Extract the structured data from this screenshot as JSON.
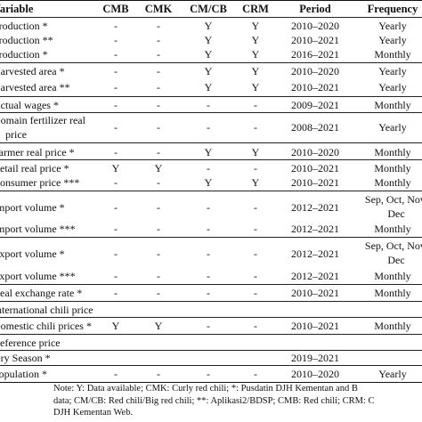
{
  "header": {
    "variable": "Variable",
    "cmb": "CMB",
    "cmk": "CMK",
    "cmcb": "CM/CB",
    "crm": "CRM",
    "period": "Period",
    "frequency": "Frequency"
  },
  "rows": [
    {
      "variable": "Production *",
      "cmb": "-",
      "cmk": "-",
      "cmcb": "Y",
      "crm": "Y",
      "period": "2010–2020",
      "frequency": "Yearly"
    },
    {
      "variable": "Production **",
      "cmb": "-",
      "cmk": "-",
      "cmcb": "Y",
      "crm": "Y",
      "period": "2010–2021",
      "frequency": "Yearly"
    },
    {
      "variable": "Production *",
      "cmb": "-",
      "cmk": "-",
      "cmcb": "Y",
      "crm": "Y",
      "period": "2016–2021",
      "frequency": "Monthly"
    },
    {
      "variable": "Harvested area *",
      "cmb": "-",
      "cmk": "-",
      "cmcb": "Y",
      "crm": "Y",
      "period": "2010–2020",
      "frequency": "Yearly"
    },
    {
      "variable": "Harvested area **",
      "cmb": "-",
      "cmk": "-",
      "cmcb": "Y",
      "crm": "Y",
      "period": "2010–2021",
      "frequency": "Yearly"
    },
    {
      "variable": "Actual wages *",
      "cmb": "-",
      "cmk": "-",
      "cmcb": "-",
      "crm": "-",
      "period": "2009–2021",
      "frequency": "Monthly"
    },
    {
      "variable_l1": "Domain fertilizer real",
      "variable_l2": "price",
      "cmb": "-",
      "cmk": "-",
      "cmcb": "-",
      "crm": "-",
      "period": "2008–2021",
      "frequency": "Yearly"
    },
    {
      "variable": "Farmer real price *",
      "cmb": "-",
      "cmk": "-",
      "cmcb": "Y",
      "crm": "Y",
      "period": "2010–2020",
      "frequency": "Monthly"
    },
    {
      "variable": "Retail real price *",
      "cmb": "Y",
      "cmk": "Y",
      "cmcb": "-",
      "crm": "-",
      "period": "2010–2021",
      "frequency": "Monthly"
    },
    {
      "variable": "Consumer price ***",
      "cmb": "-",
      "cmk": "-",
      "cmcb": "Y",
      "crm": "Y",
      "period": "2010–2021",
      "frequency": "Monthly"
    },
    {
      "variable": "Import volume *",
      "cmb": "-",
      "cmk": "-",
      "cmcb": "-",
      "crm": "-",
      "period": "2012–2021",
      "frequency_l1": "Sep, Oct, Nov,",
      "frequency_l2": "Dec"
    },
    {
      "variable": "Import volume ***",
      "cmb": "-",
      "cmk": "-",
      "cmcb": "-",
      "crm": "-",
      "period": "2012–2021",
      "frequency": "Monthly"
    },
    {
      "variable": "Export volume *",
      "cmb": "-",
      "cmk": "-",
      "cmcb": "-",
      "crm": "-",
      "period": "2012–2021",
      "frequency_l1": "Sep, Oct, Nov,",
      "frequency_l2": "Dec"
    },
    {
      "variable": "Export volume ***",
      "cmb": "-",
      "cmk": "-",
      "cmcb": "-",
      "crm": "-",
      "period": "2012–2021",
      "frequency": "Monthly"
    },
    {
      "variable": "Real exchange rate *",
      "cmb": "-",
      "cmk": "-",
      "cmcb": "-",
      "crm": "-",
      "period": "2010–2021",
      "frequency": "Monthly"
    },
    {
      "variable": "International chili price",
      "cmb": "",
      "cmk": "",
      "cmcb": "",
      "crm": "",
      "period": "",
      "frequency": ""
    },
    {
      "variable": "Domestic chili prices *",
      "cmb": "Y",
      "cmk": "Y",
      "cmcb": "-",
      "crm": "-",
      "period": "2010–2021",
      "frequency": "Monthly"
    },
    {
      "variable": "Reference price",
      "cmb": "",
      "cmk": "",
      "cmcb": "",
      "crm": "",
      "period": "",
      "frequency": ""
    },
    {
      "variable": "Dry Season *",
      "cmb": "",
      "cmk": "",
      "cmcb": "",
      "crm": "",
      "period": "2019–2021",
      "frequency": ""
    },
    {
      "variable": "Population *",
      "cmb": "-",
      "cmk": "-",
      "cmcb": "-",
      "crm": "-",
      "period": "2010–2020",
      "frequency": "Yearly"
    }
  ],
  "note": {
    "line1": "Note: Y: Data available; CMK: Curly red chili; *: Pusdatin DJH Kementan and B",
    "line2": "data; CM/CB: Red chili/Big red chili; **: Aplikasi2/BDSP; CMB: Red chili; CRM: C",
    "line3": "DJH Kementan Web."
  }
}
